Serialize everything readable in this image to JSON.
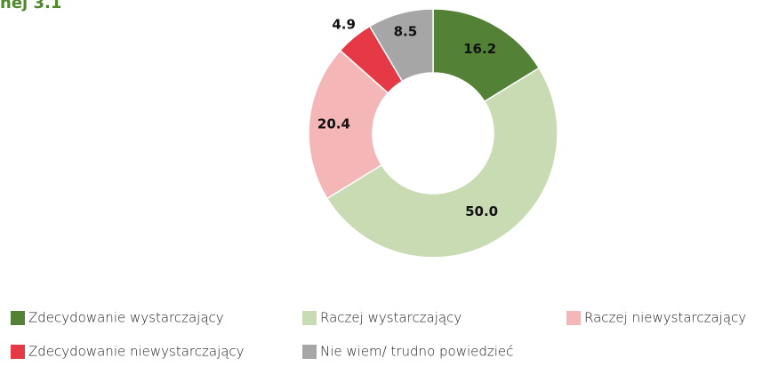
{
  "chart_data": {
    "type": "donut",
    "title": "nej 3.1",
    "categories": [
      "Zdecydowanie wystarczający",
      "Raczej wystarczający",
      "Raczej niewystarczający",
      "Zdecydowanie niewystarczający",
      "Nie wiem/ trudno powiedzieć"
    ],
    "values": [
      16.2,
      50.0,
      20.4,
      4.9,
      8.5
    ],
    "value_labels": [
      "16.2",
      "50.0",
      "20.4",
      "4.9",
      "8.5"
    ],
    "colors": [
      "#538135",
      "#c9dbb3",
      "#f4b6b6",
      "#e63946",
      "#a6a6a6"
    ],
    "legend": "bottom"
  }
}
